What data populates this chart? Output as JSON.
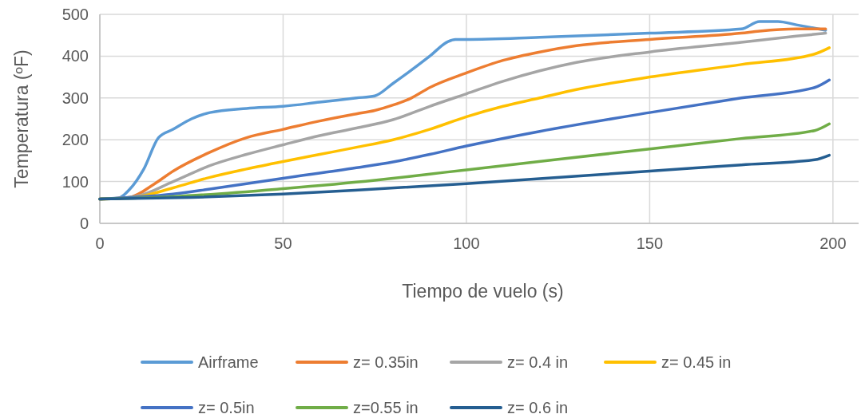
{
  "chart_data": {
    "type": "line",
    "xlabel": "Tiempo de vuelo (s)",
    "ylabel": "Temperatura (ºF)",
    "xlim": [
      0,
      207
    ],
    "xticks": [
      0,
      50,
      100,
      150,
      200
    ],
    "ylim": [
      0,
      500
    ],
    "yticks": [
      0,
      100,
      200,
      300,
      400,
      500
    ],
    "grid": true,
    "legend": "bottom",
    "marker": "none",
    "line_style": "solid",
    "series": [
      {
        "name": "Airframe",
        "color": "#5b9bd5",
        "x": [
          0,
          5,
          8,
          12,
          16,
          20,
          25,
          30,
          40,
          50,
          60,
          70,
          75,
          80,
          90,
          95,
          97,
          100,
          120,
          150,
          175,
          180,
          185,
          190,
          198
        ],
        "values": [
          58,
          60,
          80,
          130,
          205,
          225,
          250,
          265,
          275,
          280,
          290,
          300,
          305,
          335,
          400,
          435,
          440,
          440,
          445,
          455,
          465,
          483,
          483,
          475,
          462
        ]
      },
      {
        "name": "z= 0.35in",
        "color": "#ed7d31",
        "x": [
          0,
          8,
          15,
          20,
          30,
          40,
          50,
          60,
          70,
          75,
          80,
          85,
          90,
          100,
          110,
          120,
          130,
          150,
          175,
          180,
          190,
          198
        ],
        "values": [
          58,
          62,
          95,
          125,
          170,
          205,
          225,
          245,
          262,
          270,
          283,
          300,
          325,
          360,
          390,
          410,
          425,
          440,
          455,
          460,
          465,
          465
        ]
      },
      {
        "name": "z= 0.4 in",
        "color": "#a5a5a5",
        "x": [
          0,
          10,
          20,
          30,
          40,
          50,
          60,
          70,
          80,
          90,
          100,
          110,
          120,
          130,
          150,
          175,
          190,
          198
        ],
        "values": [
          58,
          65,
          100,
          138,
          165,
          188,
          210,
          228,
          248,
          280,
          310,
          340,
          365,
          385,
          410,
          433,
          448,
          455
        ]
      },
      {
        "name": "z= 0.45 in",
        "color": "#ffc000",
        "x": [
          0,
          10,
          20,
          30,
          40,
          50,
          60,
          70,
          80,
          90,
          100,
          110,
          120,
          130,
          150,
          175,
          195,
          199
        ],
        "values": [
          58,
          63,
          85,
          110,
          130,
          148,
          165,
          182,
          200,
          225,
          255,
          280,
          300,
          320,
          350,
          380,
          405,
          420
        ]
      },
      {
        "name": "z= 0.5in",
        "color": "#4472c4",
        "x": [
          0,
          20,
          30,
          50,
          70,
          80,
          90,
          100,
          120,
          150,
          175,
          195,
          199
        ],
        "values": [
          58,
          70,
          82,
          108,
          133,
          147,
          165,
          185,
          220,
          265,
          300,
          325,
          343
        ]
      },
      {
        "name": "z=0.55 in",
        "color": "#70ad47",
        "x": [
          0,
          20,
          50,
          75,
          90,
          100,
          150,
          175,
          195,
          199
        ],
        "values": [
          58,
          64,
          83,
          103,
          118,
          128,
          178,
          203,
          222,
          238
        ]
      },
      {
        "name": "z= 0.6 in",
        "color": "#255e91",
        "x": [
          0,
          25,
          50,
          75,
          100,
          150,
          175,
          195,
          199
        ],
        "values": [
          58,
          62,
          70,
          82,
          95,
          125,
          140,
          152,
          163
        ]
      }
    ]
  }
}
